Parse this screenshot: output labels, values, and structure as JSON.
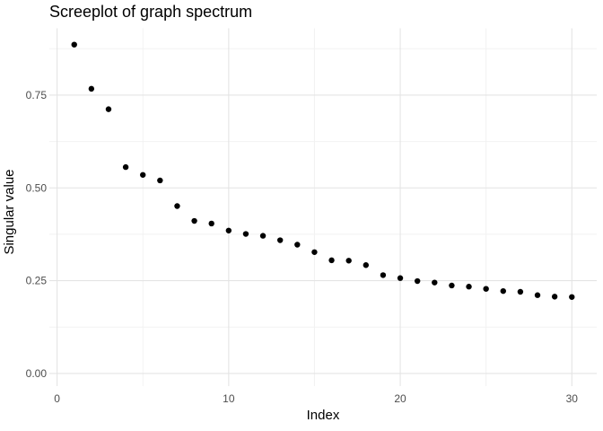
{
  "window": {
    "title": "Screeplot of graph spectrum"
  },
  "chart_data": {
    "type": "scatter",
    "title": "Screeplot of graph spectrum",
    "xlabel": "Index",
    "ylabel": "Singular value",
    "x": [
      1,
      2,
      3,
      4,
      5,
      6,
      7,
      8,
      9,
      10,
      11,
      12,
      13,
      14,
      15,
      16,
      17,
      18,
      19,
      20,
      21,
      22,
      23,
      24,
      25,
      26,
      27,
      28,
      29,
      30
    ],
    "values": [
      0.886,
      0.767,
      0.712,
      0.556,
      0.535,
      0.52,
      0.451,
      0.411,
      0.404,
      0.385,
      0.376,
      0.371,
      0.359,
      0.347,
      0.327,
      0.305,
      0.304,
      0.292,
      0.265,
      0.257,
      0.249,
      0.245,
      0.237,
      0.234,
      0.228,
      0.222,
      0.22,
      0.211,
      0.207,
      0.206
    ],
    "x_ticks": {
      "values": [
        0,
        10,
        20,
        30
      ],
      "labels": [
        "0",
        "10",
        "20",
        "30"
      ]
    },
    "y_ticks": {
      "values": [
        0.0,
        0.25,
        0.5,
        0.75
      ],
      "labels": [
        "0.00",
        "0.25",
        "0.50",
        "0.75"
      ]
    },
    "x_minor": [
      5,
      15,
      25
    ],
    "y_minor": [
      0.125,
      0.375,
      0.625,
      0.875
    ],
    "xlim": [
      -0.45,
      31.45
    ],
    "ylim": [
      -0.034,
      0.93
    ],
    "grid": true,
    "legend": "none",
    "style": {
      "point_color": "#000000",
      "point_radius": 3.2,
      "grid_major_color": "#e4e4e4",
      "grid_minor_color": "#f2f2f2",
      "tick_label_color": "#4d4d4d",
      "title_color": "#000000",
      "axis_title_color": "#000000",
      "background": "#ffffff"
    }
  }
}
